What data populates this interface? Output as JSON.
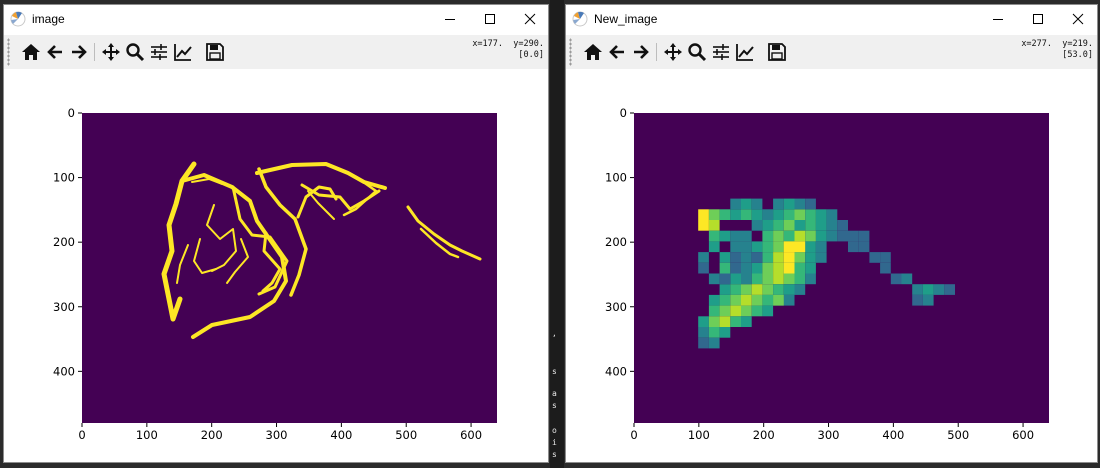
{
  "left_window": {
    "title": "image",
    "coord_x": "x=177.",
    "coord_y": "y=290.",
    "coord_value": "[0.0]",
    "plot": {
      "x_ticks": [
        "0",
        "100",
        "200",
        "300",
        "400",
        "500",
        "600"
      ],
      "y_ticks": [
        "0",
        "100",
        "200",
        "300",
        "400"
      ],
      "background_color": "#440154",
      "foreground_color": "#fde725"
    }
  },
  "right_window": {
    "title": "New_image",
    "coord_x": "x=277.",
    "coord_y": "y=219.",
    "coord_value": "[53.0]",
    "plot": {
      "x_ticks": [
        "0",
        "100",
        "200",
        "300",
        "400",
        "500",
        "600"
      ],
      "y_ticks": [
        "0",
        "100",
        "200",
        "300",
        "400"
      ],
      "background_color": "#440154",
      "colors": [
        "#3e4a89",
        "#31688e",
        "#26828e",
        "#1f9e89",
        "#35b779",
        "#6ece58",
        "#b5de2b",
        "#fde725"
      ]
    }
  },
  "toolbar_icons": [
    "home-icon",
    "back-arrow-icon",
    "forward-arrow-icon",
    "pan-icon",
    "zoom-icon",
    "configure-subplots-icon",
    "edit-axes-icon",
    "save-icon"
  ],
  "side_strip_chars": [
    ",",
    "s",
    "a",
    "s",
    "o",
    "i",
    "s"
  ]
}
